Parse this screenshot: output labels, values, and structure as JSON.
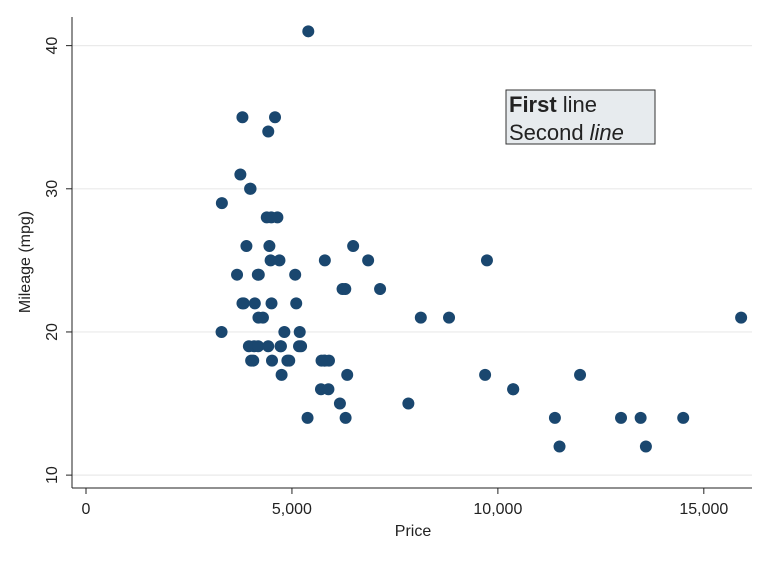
{
  "chart_data": {
    "type": "scatter",
    "x_label": "Price",
    "y_label": "Mileage (mpg)",
    "x": [
      4099,
      4749,
      3799,
      4816,
      7827,
      5788,
      4453,
      5189,
      10372,
      4082,
      11385,
      14500,
      15906,
      3299,
      5705,
      4504,
      5104,
      3667,
      3955,
      3984,
      4010,
      5886,
      6342,
      4389,
      4187,
      11497,
      13594,
      13466,
      3829,
      5379,
      6165,
      4516,
      6303,
      3291,
      8814,
      5172,
      4733,
      4890,
      4181,
      4195,
      10371,
      4647,
      4425,
      4482,
      6486,
      4060,
      5798,
      4934,
      5222,
      4723,
      4424,
      4172,
      9690,
      6295,
      9735,
      6229,
      4589,
      5079,
      8129,
      4296,
      5799,
      4499,
      3995,
      12990,
      3895,
      3798,
      5899,
      3748,
      5719,
      4697,
      5397,
      6850,
      7140,
      11995
    ],
    "values": [
      22,
      17,
      22,
      20,
      15,
      18,
      26,
      20,
      16,
      19,
      14,
      14,
      21,
      29,
      16,
      22,
      22,
      24,
      19,
      30,
      18,
      16,
      17,
      28,
      21,
      12,
      12,
      14,
      22,
      14,
      15,
      18,
      14,
      20,
      21,
      19,
      19,
      18,
      19,
      24,
      16,
      28,
      34,
      25,
      26,
      18,
      18,
      18,
      19,
      19,
      19,
      24,
      17,
      23,
      25,
      23,
      35,
      24,
      21,
      21,
      25,
      28,
      30,
      14,
      26,
      35,
      18,
      31,
      18,
      25,
      41,
      25,
      23,
      17
    ],
    "color": "#1a476f",
    "xlim": [
      -340,
      16170
    ],
    "ylim": [
      9.1,
      42
    ],
    "xticks": [
      0,
      {
        "value": 5000,
        "label": "5,000"
      },
      {
        "value": 10000,
        "label": "10,000"
      },
      {
        "value": 15000,
        "label": "15,000"
      }
    ],
    "yticks": [
      10,
      20,
      30,
      40
    ],
    "grid": true,
    "textbox": {
      "line1_bold": "First",
      "line1_rest": "line",
      "line2_rest": "Second",
      "line2_italic": "line"
    }
  }
}
